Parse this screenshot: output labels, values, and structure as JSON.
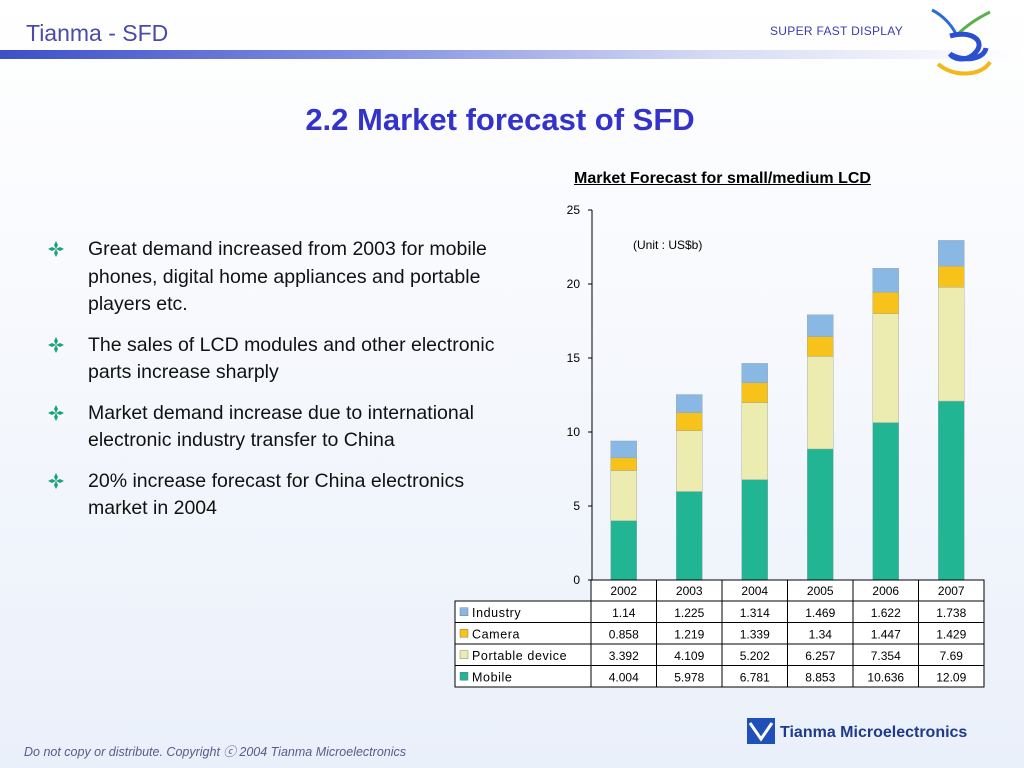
{
  "header": {
    "title": "Tianma - SFD",
    "tagline": "SUPER FAST DISPLAY"
  },
  "page_title": "2.2 Market forecast of SFD",
  "bullets": [
    "Great demand increased from 2003 for mobile phones, digital home appliances and portable players etc.",
    "The sales of LCD modules and other electronic parts increase sharply",
    "Market demand increase due to international electronic industry transfer to China",
    "20% increase forecast for China electronics market in 2004"
  ],
  "chart_data": {
    "type": "bar",
    "stacked": true,
    "title": "Market Forecast for small/medium LCD",
    "unit_note": "(Unit : US$b)",
    "categories": [
      "2002",
      "2003",
      "2004",
      "2005",
      "2006",
      "2007"
    ],
    "ylim": [
      0,
      25
    ],
    "yticks": [
      0,
      5,
      10,
      15,
      20,
      25
    ],
    "grid": false,
    "legend": "data table below chart",
    "series": [
      {
        "name": "Mobile",
        "color": "#22b593",
        "values": [
          4.004,
          5.978,
          6.781,
          8.853,
          10.636,
          12.09
        ],
        "labels": [
          "4.004",
          "5.978",
          "6.781",
          "8.853",
          "10.636",
          "12.09"
        ]
      },
      {
        "name": "Portable device",
        "color": "#ecebb0",
        "values": [
          3.392,
          4.109,
          5.202,
          6.257,
          7.354,
          7.69
        ],
        "labels": [
          "3.392",
          "4.109",
          "5.202",
          "6.257",
          "7.354",
          "7.69"
        ]
      },
      {
        "name": "Camera",
        "color": "#f7c31a",
        "values": [
          0.858,
          1.219,
          1.339,
          1.34,
          1.447,
          1.429
        ],
        "labels": [
          "0.858",
          "1.219",
          "1.339",
          "1.34",
          "1.447",
          "1.429"
        ]
      },
      {
        "name": "Industry",
        "color": "#8ab8e4",
        "values": [
          1.14,
          1.225,
          1.314,
          1.469,
          1.622,
          1.738
        ],
        "labels": [
          "1.14",
          "1.225",
          "1.314",
          "1.469",
          "1.622",
          "1.738"
        ]
      }
    ],
    "table_row_order": [
      "Industry",
      "Camera",
      "Portable device",
      "Mobile"
    ]
  },
  "footer": {
    "copyright": "Do not copy or distribute. Copyright ⓒ 2004 Tianma Microelectronics",
    "company": "Tianma Microelectronics"
  },
  "colors": {
    "title": "#3333cc",
    "header_bar": "#3e4fc8",
    "bullet": "#1aa37a"
  },
  "icons": [
    "swirl-logo-icon",
    "diamond-bullet-icon",
    "tianma-logo-icon"
  ]
}
